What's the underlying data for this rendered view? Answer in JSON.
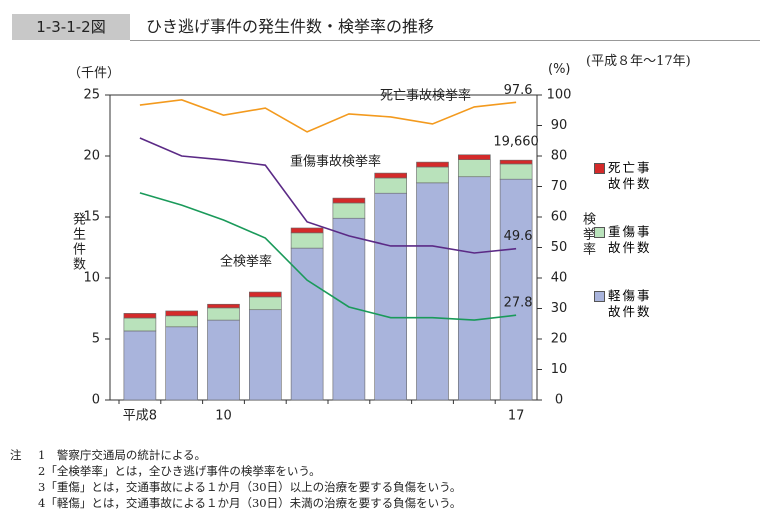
{
  "header": {
    "figure_no": "1-3-1-2図",
    "title": "ひき逃げ事件の発生件数・検挙率の推移",
    "period": "(平成８年～17年)"
  },
  "chart_data": {
    "type": "bar",
    "stacked": true,
    "y_label": "発生件数",
    "y_unit": "（千件）",
    "y2_label": "検挙率",
    "y2_unit": "(%)",
    "categories": [
      "平成8",
      null,
      "10",
      null,
      null,
      null,
      null,
      null,
      null,
      "17"
    ],
    "ylim": [
      0,
      25
    ],
    "yticks": [
      0,
      5,
      10,
      15,
      20,
      25
    ],
    "y2lim": [
      0,
      100
    ],
    "y2ticks": [
      0,
      10,
      20,
      30,
      40,
      50,
      60,
      70,
      80,
      90,
      100
    ],
    "series": [
      {
        "name": "軽傷事故件数",
        "color": "#a9b4dc",
        "values": [
          5.66,
          6.0,
          6.55,
          7.4,
          12.45,
          14.9,
          16.95,
          17.8,
          18.3,
          18.1
        ]
      },
      {
        "name": "重傷事故件数",
        "color": "#b9e2bb",
        "values": [
          1.06,
          0.9,
          1.0,
          1.05,
          1.25,
          1.25,
          1.25,
          1.3,
          1.4,
          1.25
        ]
      },
      {
        "name": "死亡事故件数",
        "color": "#d42a2a",
        "values": [
          0.38,
          0.4,
          0.3,
          0.4,
          0.4,
          0.4,
          0.4,
          0.4,
          0.4,
          0.31
        ]
      },
      {
        "name": "死亡事故検挙率",
        "type": "line",
        "axis": "y2",
        "color": "#f39a1e",
        "values": [
          96.7,
          98.4,
          93.4,
          95.7,
          87.9,
          93.8,
          92.8,
          90.5,
          96.1,
          97.6
        ],
        "value_labels": [
          null,
          null,
          null,
          null,
          null,
          null,
          null,
          null,
          null,
          "97.6"
        ]
      },
      {
        "name": "重傷事故検挙率",
        "type": "line",
        "axis": "y2",
        "color": "#5b2a86",
        "values": [
          85.9,
          80.0,
          78.7,
          77.0,
          58.4,
          53.8,
          50.5,
          50.5,
          48.2,
          49.6
        ],
        "value_labels": [
          null,
          null,
          null,
          null,
          null,
          null,
          null,
          null,
          null,
          "49.6"
        ]
      },
      {
        "name": "全検挙率",
        "type": "line",
        "axis": "y2",
        "color": "#1a9a5a",
        "values": [
          67.9,
          63.9,
          59.0,
          53.1,
          39.3,
          30.5,
          27.0,
          27.0,
          26.2,
          27.8
        ],
        "value_labels": [
          null,
          null,
          null,
          null,
          null,
          null,
          null,
          null,
          null,
          "27.8"
        ]
      }
    ],
    "total_label": {
      "value": 19.66,
      "label": "19,660"
    }
  },
  "notes": {
    "head": "注",
    "items": [
      "1　警察庁交通局の統計による。",
      "2「全検挙率」とは，全ひき逃げ事件の検挙率をいう。",
      "3「重傷」とは，交通事故による１か月（30日）以上の治療を要する負傷をいう。",
      "4「軽傷」とは，交通事故による１か月（30日）未満の治療を要する負傷をいう。"
    ]
  }
}
